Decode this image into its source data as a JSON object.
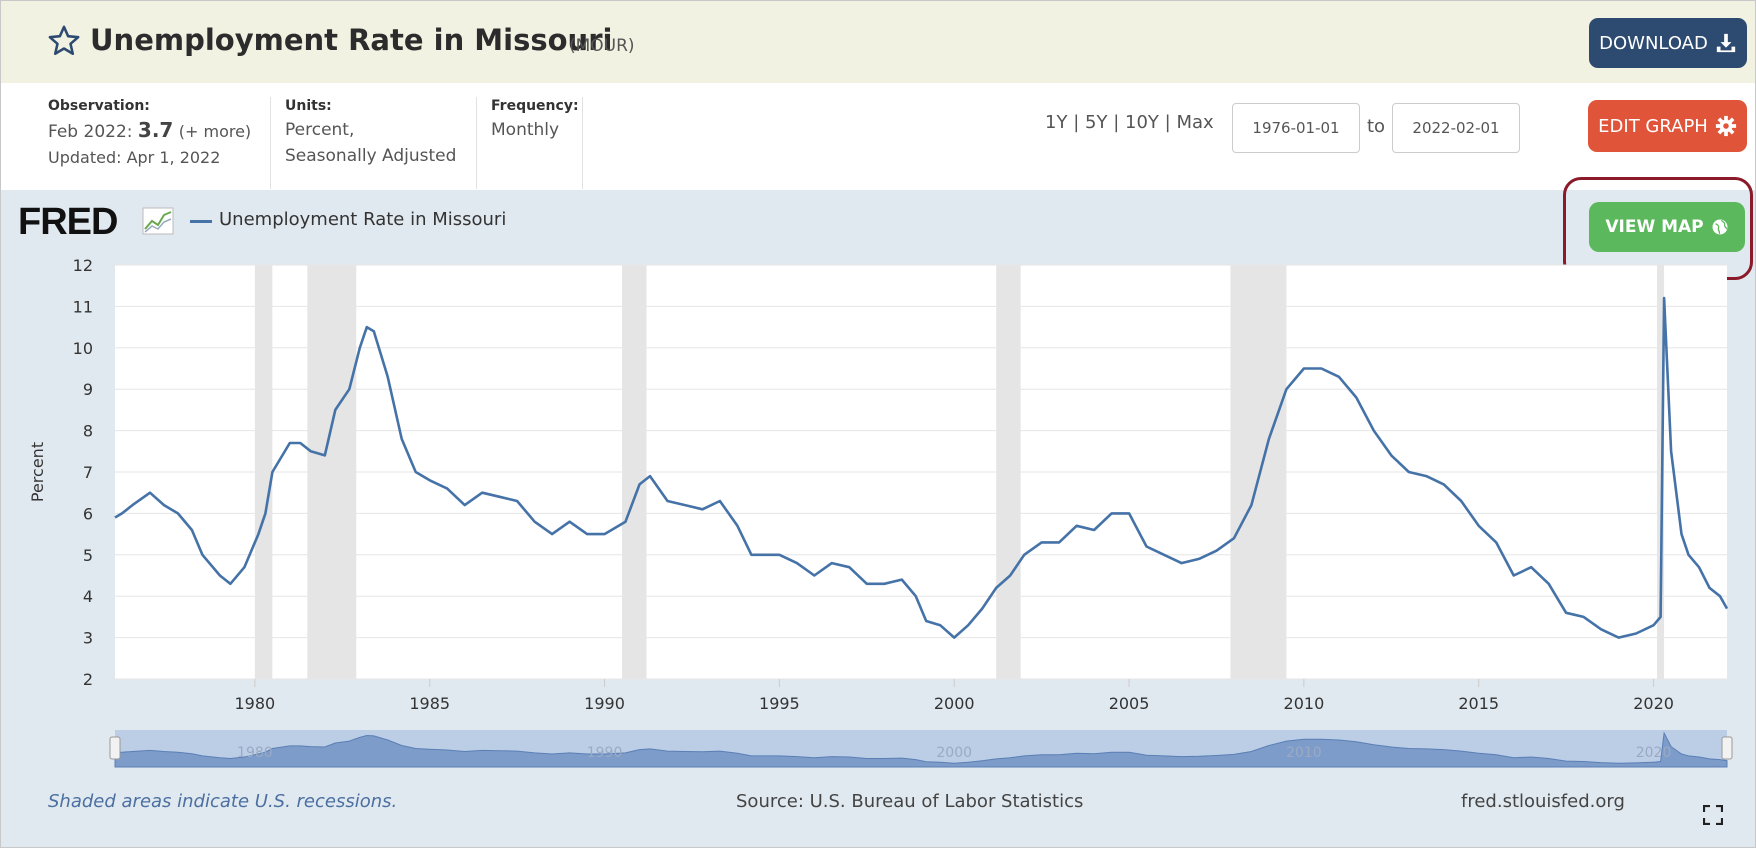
{
  "header": {
    "title": "Unemployment Rate in Missouri",
    "series_id": "(MOUR)",
    "download_label": "DOWNLOAD",
    "icons": {
      "star": "star-icon",
      "download": "download-icon"
    }
  },
  "meta": {
    "observation_label": "Observation:",
    "observation_date": "Feb 2022:",
    "observation_value": "3.7",
    "observation_more": "(+ more)",
    "updated": "Updated: Apr 1, 2022",
    "units_label": "Units:",
    "units_line1": "Percent,",
    "units_line2": "Seasonally Adjusted",
    "frequency_label": "Frequency:",
    "frequency_value": "Monthly"
  },
  "range_controls": {
    "range_1y": "1Y",
    "range_5y": "5Y",
    "range_10y": "10Y",
    "range_max": "Max",
    "separator": "|",
    "start_date": "1976-01-01",
    "to_label": "to",
    "end_date": "2022-02-01",
    "edit_graph_label": "EDIT GRAPH",
    "view_map_label": "VIEW MAP"
  },
  "chart_meta": {
    "logo": "FRED",
    "legend_entry": "Unemployment Rate in Missouri",
    "footer_note": "Shaded areas indicate U.S. recessions.",
    "source": "Source: U.S. Bureau of Labor Statistics",
    "url": "fred.stlouisfed.org"
  },
  "colors": {
    "series": "#4572a7",
    "recession": "#e5e5e5",
    "download_btn": "#2d4a70",
    "edit_btn": "#e0553a",
    "map_btn": "#5cb85c",
    "title_bar": "#f1f2e2",
    "chart_bg": "#e1e9f0",
    "highlight": "#8b1a2a"
  },
  "chart_data": {
    "type": "line",
    "title": "Unemployment Rate in Missouri",
    "ylabel": "Percent",
    "xlabel": "",
    "xlim": [
      1976.0,
      2022.1
    ],
    "ylim": [
      2,
      12
    ],
    "yticks": [
      2,
      3,
      4,
      5,
      6,
      7,
      8,
      9,
      10,
      11,
      12
    ],
    "xticks": [
      1980,
      1985,
      1990,
      1995,
      2000,
      2005,
      2010,
      2015,
      2020
    ],
    "grid": true,
    "legend": "top-left",
    "recessions": [
      [
        1980.0,
        1980.5
      ],
      [
        1981.5,
        1982.9
      ],
      [
        1990.5,
        1991.2
      ],
      [
        2001.2,
        2001.9
      ],
      [
        2007.9,
        2009.5
      ],
      [
        2020.1,
        2020.3
      ]
    ],
    "navigator_labels": [
      "1980",
      "1990",
      "2000",
      "2010",
      "2020"
    ],
    "series": [
      {
        "name": "Unemployment Rate in Missouri",
        "x": [
          1976.0,
          1976.2,
          1976.5,
          1977.0,
          1977.4,
          1977.8,
          1978.2,
          1978.5,
          1979.0,
          1979.3,
          1979.7,
          1980.1,
          1980.3,
          1980.5,
          1981.0,
          1981.3,
          1981.6,
          1982.0,
          1982.3,
          1982.7,
          1983.0,
          1983.2,
          1983.4,
          1983.8,
          1984.2,
          1984.6,
          1985.0,
          1985.5,
          1986.0,
          1986.5,
          1987.0,
          1987.5,
          1988.0,
          1988.5,
          1989.0,
          1989.5,
          1990.0,
          1990.6,
          1991.0,
          1991.3,
          1991.8,
          1992.3,
          1992.8,
          1993.3,
          1993.8,
          1994.2,
          1994.6,
          1995.0,
          1995.5,
          1996.0,
          1996.5,
          1997.0,
          1997.5,
          1998.0,
          1998.5,
          1998.9,
          1999.2,
          1999.6,
          2000.0,
          2000.4,
          2000.8,
          2001.2,
          2001.6,
          2002.0,
          2002.5,
          2003.0,
          2003.5,
          2004.0,
          2004.5,
          2005.0,
          2005.5,
          2006.0,
          2006.5,
          2007.0,
          2007.5,
          2008.0,
          2008.5,
          2009.0,
          2009.5,
          2010.0,
          2010.5,
          2011.0,
          2011.5,
          2012.0,
          2012.5,
          2013.0,
          2013.5,
          2014.0,
          2014.5,
          2015.0,
          2015.5,
          2016.0,
          2016.5,
          2017.0,
          2017.5,
          2018.0,
          2018.5,
          2019.0,
          2019.5,
          2020.0,
          2020.2,
          2020.3,
          2020.5,
          2020.8,
          2021.0,
          2021.3,
          2021.6,
          2021.9,
          2022.1
        ],
        "values": [
          5.9,
          6.0,
          6.2,
          6.5,
          6.2,
          6.0,
          5.6,
          5.0,
          4.5,
          4.3,
          4.7,
          5.5,
          6.0,
          7.0,
          7.7,
          7.7,
          7.5,
          7.4,
          8.5,
          9.0,
          10.0,
          10.5,
          10.4,
          9.3,
          7.8,
          7.0,
          6.8,
          6.6,
          6.2,
          6.5,
          6.4,
          6.3,
          5.8,
          5.5,
          5.8,
          5.5,
          5.5,
          5.8,
          6.7,
          6.9,
          6.3,
          6.2,
          6.1,
          6.3,
          5.7,
          5.0,
          5.0,
          5.0,
          4.8,
          4.5,
          4.8,
          4.7,
          4.3,
          4.3,
          4.4,
          4.0,
          3.4,
          3.3,
          3.0,
          3.3,
          3.7,
          4.2,
          4.5,
          5.0,
          5.3,
          5.3,
          5.7,
          5.6,
          6.0,
          6.0,
          5.2,
          5.0,
          4.8,
          4.9,
          5.1,
          5.4,
          6.2,
          7.8,
          9.0,
          9.5,
          9.5,
          9.3,
          8.8,
          8.0,
          7.4,
          7.0,
          6.9,
          6.7,
          6.3,
          5.7,
          5.3,
          4.5,
          4.7,
          4.3,
          3.6,
          3.5,
          3.2,
          3.0,
          3.1,
          3.3,
          3.5,
          11.2,
          7.5,
          5.5,
          5.0,
          4.7,
          4.2,
          4.0,
          3.7
        ]
      }
    ]
  }
}
